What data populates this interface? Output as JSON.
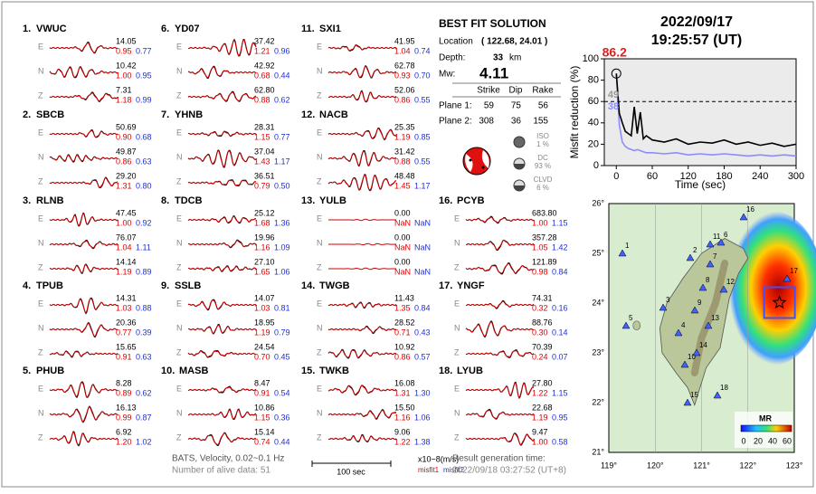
{
  "stations": [
    {
      "label": "1.",
      "name": "VWUC",
      "components": [
        {
          "comp": "E",
          "amp": "14.05",
          "misfit1": "0.95",
          "misfit2": "0.77"
        },
        {
          "comp": "N",
          "amp": "10.42",
          "misfit1": "1.00",
          "misfit2": "0.95"
        },
        {
          "comp": "Z",
          "amp": "7.31",
          "misfit1": "1.18",
          "misfit2": "0.99"
        }
      ]
    },
    {
      "label": "2.",
      "name": "SBCB",
      "components": [
        {
          "comp": "E",
          "amp": "50.69",
          "misfit1": "0.90",
          "misfit2": "0.68"
        },
        {
          "comp": "N",
          "amp": "49.87",
          "misfit1": "0.86",
          "misfit2": "0.63"
        },
        {
          "comp": "Z",
          "amp": "29.20",
          "misfit1": "1.31",
          "misfit2": "0.80"
        }
      ]
    },
    {
      "label": "3.",
      "name": "RLNB",
      "components": [
        {
          "comp": "E",
          "amp": "47.45",
          "misfit1": "1.00",
          "misfit2": "0.92"
        },
        {
          "comp": "N",
          "amp": "76.07",
          "misfit1": "1.04",
          "misfit2": "1.11"
        },
        {
          "comp": "Z",
          "amp": "14.14",
          "misfit1": "1.19",
          "misfit2": "0.89"
        }
      ]
    },
    {
      "label": "4.",
      "name": "TPUB",
      "components": [
        {
          "comp": "E",
          "amp": "14.31",
          "misfit1": "1.03",
          "misfit2": "0.88"
        },
        {
          "comp": "N",
          "amp": "20.36",
          "misfit1": "0.77",
          "misfit2": "0.39"
        },
        {
          "comp": "Z",
          "amp": "15.65",
          "misfit1": "0.91",
          "misfit2": "0.63"
        }
      ]
    },
    {
      "label": "5.",
      "name": "PHUB",
      "components": [
        {
          "comp": "E",
          "amp": "8.28",
          "misfit1": "0.89",
          "misfit2": "0.62"
        },
        {
          "comp": "N",
          "amp": "16.13",
          "misfit1": "0.99",
          "misfit2": "0.87"
        },
        {
          "comp": "Z",
          "amp": "6.92",
          "misfit1": "1.20",
          "misfit2": "1.02"
        }
      ]
    },
    {
      "label": "6.",
      "name": "YD07",
      "components": [
        {
          "comp": "E",
          "amp": "37.42",
          "misfit1": "1.21",
          "misfit2": "0.96"
        },
        {
          "comp": "N",
          "amp": "42.92",
          "misfit1": "0.68",
          "misfit2": "0.44"
        },
        {
          "comp": "Z",
          "amp": "62.80",
          "misfit1": "0.88",
          "misfit2": "0.62"
        }
      ]
    },
    {
      "label": "7.",
      "name": "YHNB",
      "components": [
        {
          "comp": "E",
          "amp": "28.31",
          "misfit1": "1.15",
          "misfit2": "0.77"
        },
        {
          "comp": "N",
          "amp": "37.04",
          "misfit1": "1.43",
          "misfit2": "1.17"
        },
        {
          "comp": "Z",
          "amp": "36.51",
          "misfit1": "0.79",
          "misfit2": "0.50"
        }
      ]
    },
    {
      "label": "8.",
      "name": "TDCB",
      "components": [
        {
          "comp": "E",
          "amp": "25.12",
          "misfit1": "1.68",
          "misfit2": "1.36"
        },
        {
          "comp": "N",
          "amp": "19.96",
          "misfit1": "1.16",
          "misfit2": "1.09"
        },
        {
          "comp": "Z",
          "amp": "27.10",
          "misfit1": "1.65",
          "misfit2": "1.06"
        }
      ]
    },
    {
      "label": "9.",
      "name": "SSLB",
      "components": [
        {
          "comp": "E",
          "amp": "14.07",
          "misfit1": "1.03",
          "misfit2": "0.81"
        },
        {
          "comp": "N",
          "amp": "18.95",
          "misfit1": "1.19",
          "misfit2": "0.79"
        },
        {
          "comp": "Z",
          "amp": "24.54",
          "misfit1": "0.70",
          "misfit2": "0.45"
        }
      ]
    },
    {
      "label": "10.",
      "name": "MASB",
      "components": [
        {
          "comp": "E",
          "amp": "8.47",
          "misfit1": "0.91",
          "misfit2": "0.54"
        },
        {
          "comp": "N",
          "amp": "10.86",
          "misfit1": "1.15",
          "misfit2": "0.36"
        },
        {
          "comp": "Z",
          "amp": "15.14",
          "misfit1": "0.74",
          "misfit2": "0.44"
        }
      ]
    },
    {
      "label": "11.",
      "name": "SXI1",
      "components": [
        {
          "comp": "E",
          "amp": "41.95",
          "misfit1": "1.04",
          "misfit2": "0.74"
        },
        {
          "comp": "N",
          "amp": "62.78",
          "misfit1": "0.93",
          "misfit2": "0.70"
        },
        {
          "comp": "Z",
          "amp": "52.06",
          "misfit1": "0.86",
          "misfit2": "0.55"
        }
      ]
    },
    {
      "label": "12.",
      "name": "NACB",
      "components": [
        {
          "comp": "E",
          "amp": "25.35",
          "misfit1": "1.19",
          "misfit2": "0.85"
        },
        {
          "comp": "N",
          "amp": "31.42",
          "misfit1": "0.88",
          "misfit2": "0.55"
        },
        {
          "comp": "Z",
          "amp": "48.48",
          "misfit1": "1.45",
          "misfit2": "1.17"
        }
      ]
    },
    {
      "label": "13.",
      "name": "YULB",
      "components": [
        {
          "comp": "E",
          "amp": "0.00",
          "misfit1": "NaN",
          "misfit2": "NaN"
        },
        {
          "comp": "N",
          "amp": "0.00",
          "misfit1": "NaN",
          "misfit2": "NaN"
        },
        {
          "comp": "Z",
          "amp": "0.00",
          "misfit1": "NaN",
          "misfit2": "NaN"
        }
      ]
    },
    {
      "label": "14.",
      "name": "TWGB",
      "components": [
        {
          "comp": "E",
          "amp": "11.43",
          "misfit1": "1.35",
          "misfit2": "0.84"
        },
        {
          "comp": "N",
          "amp": "28.52",
          "misfit1": "0.71",
          "misfit2": "0.43"
        },
        {
          "comp": "Z",
          "amp": "10.92",
          "misfit1": "0.86",
          "misfit2": "0.57"
        }
      ]
    },
    {
      "label": "15.",
      "name": "TWKB",
      "components": [
        {
          "comp": "E",
          "amp": "16.08",
          "misfit1": "1.31",
          "misfit2": "1.30"
        },
        {
          "comp": "N",
          "amp": "15.50",
          "misfit1": "1.16",
          "misfit2": "1.06"
        },
        {
          "comp": "Z",
          "amp": "9.06",
          "misfit1": "1.22",
          "misfit2": "1.38"
        }
      ]
    },
    {
      "label": "16.",
      "name": "PCYB",
      "components": [
        {
          "comp": "E",
          "amp": "683.80",
          "misfit1": "1.00",
          "misfit2": "1.15"
        },
        {
          "comp": "N",
          "amp": "357.28",
          "misfit1": "1.05",
          "misfit2": "1.42"
        },
        {
          "comp": "Z",
          "amp": "121.89",
          "misfit1": "0.98",
          "misfit2": "0.84"
        }
      ]
    },
    {
      "label": "17.",
      "name": "YNGF",
      "components": [
        {
          "comp": "E",
          "amp": "74.31",
          "misfit1": "0.32",
          "misfit2": "0.16"
        },
        {
          "comp": "N",
          "amp": "88.76",
          "misfit1": "0.30",
          "misfit2": "0.14"
        },
        {
          "comp": "Z",
          "amp": "70.39",
          "misfit1": "0.24",
          "misfit2": "0.07"
        }
      ]
    },
    {
      "label": "18.",
      "name": "LYUB",
      "components": [
        {
          "comp": "E",
          "amp": "27.80",
          "misfit1": "1.22",
          "misfit2": "1.15"
        },
        {
          "comp": "N",
          "amp": "22.68",
          "misfit1": "1.19",
          "misfit2": "0.95"
        },
        {
          "comp": "Z",
          "amp": "9.47",
          "misfit1": "1.00",
          "misfit2": "0.58"
        }
      ]
    }
  ],
  "solution": {
    "title": "BEST FIT SOLUTION",
    "location_label": "Location",
    "location": "( 122.68, 24.01 )",
    "depth_label": "Depth:",
    "depth": "33",
    "depth_unit": "km",
    "mw_label": "Mw:",
    "mw": "4.11",
    "table": {
      "header": [
        "Strike",
        "Dip",
        "Rake"
      ],
      "rows": [
        {
          "label": "Plane 1:",
          "values": [
            "59",
            "75",
            "56"
          ]
        },
        {
          "label": "Plane 2:",
          "values": [
            "308",
            "36",
            "155"
          ]
        }
      ]
    },
    "components": [
      {
        "name": "ISO",
        "percent": "1 %"
      },
      {
        "name": "DC",
        "percent": "93 %"
      },
      {
        "name": "CLVD",
        "percent": "6 %"
      }
    ]
  },
  "event": {
    "date": "2022/09/17",
    "time": "19:25:57  (UT)"
  },
  "chart_data": {
    "type": "line",
    "x_label": "Time (sec)",
    "y_label": "Misfit reduction (%)",
    "x": [
      0,
      5,
      10,
      15,
      20,
      25,
      30,
      35,
      40,
      45,
      50,
      60,
      80,
      100,
      120,
      140,
      160,
      180,
      200,
      220,
      240,
      260,
      280,
      300
    ],
    "series": [
      {
        "color": "#000000",
        "values": [
          86.2,
          49,
          40,
          32,
          30,
          28,
          55,
          30,
          50,
          25,
          28,
          24,
          22,
          25,
          20,
          22,
          21,
          24,
          20,
          22,
          19,
          21,
          18,
          20
        ]
      },
      {
        "color": "#8c8cff",
        "values": [
          86.2,
          38,
          22,
          18,
          16,
          15,
          14,
          15,
          14,
          13,
          12,
          12,
          11,
          12,
          10,
          11,
          10,
          11,
          10,
          9,
          10,
          9,
          10,
          9
        ]
      }
    ],
    "annotations": [
      {
        "text": "86.2",
        "color": "#e02020"
      },
      {
        "text": "49",
        "color": "#999999"
      },
      {
        "text": "38",
        "color": "#8c8cff"
      }
    ],
    "reference_line": 60,
    "xlim": [
      -20,
      300
    ],
    "xticks": [
      0,
      60,
      120,
      180,
      240,
      300
    ],
    "ylim": [
      0,
      100
    ],
    "yticks": [
      0,
      20,
      40,
      60,
      80,
      100
    ]
  },
  "map": {
    "lon_ticks": [
      {
        "value": 119,
        "label": "119°"
      },
      {
        "value": 120,
        "label": "120°"
      },
      {
        "value": 121,
        "label": "121°"
      },
      {
        "value": 122,
        "label": "122°"
      },
      {
        "value": 123,
        "label": "123°"
      }
    ],
    "lat_ticks": [
      {
        "value": 21,
        "label": "21°"
      },
      {
        "value": 22,
        "label": "22°"
      },
      {
        "value": 23,
        "label": "23°"
      },
      {
        "value": 24,
        "label": "24°"
      },
      {
        "value": 25,
        "label": "25°"
      },
      {
        "value": 26,
        "label": "26°"
      }
    ],
    "station_labels": [
      "1",
      "2",
      "3",
      "4",
      "5",
      "6",
      "7",
      "8",
      "9",
      "10",
      "11",
      "12",
      "13",
      "14",
      "15",
      "16",
      "17",
      "18"
    ],
    "colorbar_title": "MR",
    "colorbar_ticks": [
      "0",
      "20",
      "40",
      "60"
    ]
  },
  "footer": {
    "source": "BATS, Velocity, 0.02~0.1 Hz",
    "alive": "Number of alive data: 51",
    "scale": "100 sec",
    "unit": "x10−8(m/s)",
    "misfit1": "misfit1",
    "misfit2": "misfit2",
    "generated_label": "Result generation time:",
    "generated": "2022/09/18 03:27:52 (UT+8)"
  }
}
